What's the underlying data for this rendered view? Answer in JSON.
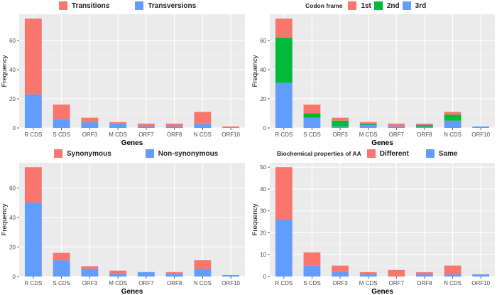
{
  "panels": [
    {
      "legend_title": "",
      "legend": [
        {
          "label": "Transitions",
          "color": "#F8766D"
        },
        {
          "label": "Transversions",
          "color": "#619CFF"
        }
      ]
    },
    {
      "legend_title": "Codon frame",
      "legend": [
        {
          "label": "1st",
          "color": "#F8766D"
        },
        {
          "label": "2nd",
          "color": "#00BA38"
        },
        {
          "label": "3rd",
          "color": "#619CFF"
        }
      ]
    },
    {
      "legend_title": "",
      "legend": [
        {
          "label": "Synonymous",
          "color": "#F8766D"
        },
        {
          "label": "Non-synonymous",
          "color": "#619CFF"
        }
      ]
    },
    {
      "legend_title": "Biochemical properties of AA",
      "legend": [
        {
          "label": "Different",
          "color": "#F8766D"
        },
        {
          "label": "Same",
          "color": "#619CFF"
        }
      ]
    }
  ],
  "chart_data": [
    {
      "type": "bar",
      "stacked": true,
      "title": "",
      "xlabel": "Genes",
      "ylabel": "Frequency",
      "categories": [
        "R CDS",
        "S CDS",
        "ORF3",
        "M CDS",
        "ORF7",
        "ORF8",
        "N CDS",
        "ORF10"
      ],
      "ylim": [
        0,
        78
      ],
      "yticks": [
        0,
        20,
        40,
        60
      ],
      "grid": true,
      "legend_position": "top",
      "series": [
        {
          "name": "Transversions",
          "color": "#619CFF",
          "values": [
            23,
            6,
            4,
            3,
            1,
            1,
            3,
            0
          ]
        },
        {
          "name": "Transitions",
          "color": "#F8766D",
          "values": [
            52,
            10,
            3,
            1,
            2,
            2,
            8,
            1
          ]
        }
      ]
    },
    {
      "type": "bar",
      "stacked": true,
      "title": "",
      "xlabel": "Genes",
      "ylabel": "Frequency",
      "legend_title": "Codon frame",
      "categories": [
        "R CDS",
        "S CDS",
        "ORF3",
        "M CDS",
        "ORF7",
        "ORF8",
        "N CDS",
        "ORF10"
      ],
      "ylim": [
        0,
        78
      ],
      "yticks": [
        0,
        20,
        40,
        60
      ],
      "grid": true,
      "legend_position": "top",
      "series": [
        {
          "name": "3rd",
          "color": "#619CFF",
          "values": [
            31,
            7,
            1,
            2,
            1,
            1,
            5,
            1
          ]
        },
        {
          "name": "2nd",
          "color": "#00BA38",
          "values": [
            31,
            3,
            4,
            1,
            0,
            1,
            4,
            0
          ]
        },
        {
          "name": "1st",
          "color": "#F8766D",
          "values": [
            13,
            6,
            2,
            1,
            2,
            1,
            2,
            0
          ]
        }
      ]
    },
    {
      "type": "bar",
      "stacked": true,
      "title": "",
      "xlabel": "Genes",
      "ylabel": "Frequency",
      "categories": [
        "R CDS",
        "S CDS",
        "ORF3",
        "M CDS",
        "ORF7",
        "ORF8",
        "N CDS",
        "ORF10"
      ],
      "ylim": [
        0,
        77
      ],
      "yticks": [
        0,
        20,
        40,
        60
      ],
      "grid": true,
      "legend_position": "top",
      "series": [
        {
          "name": "Non-synonymous",
          "color": "#619CFF",
          "values": [
            50,
            11,
            5,
            2,
            3,
            2,
            5,
            1
          ]
        },
        {
          "name": "Synonymous",
          "color": "#F8766D",
          "values": [
            24,
            5,
            2,
            2,
            0,
            1,
            6,
            0
          ]
        }
      ]
    },
    {
      "type": "bar",
      "stacked": true,
      "title": "",
      "xlabel": "Genes",
      "ylabel": "Frequency",
      "legend_title": "Biochemical properties of AA",
      "categories": [
        "R CDS",
        "S CDS",
        "ORF3",
        "M CDS",
        "ORF7",
        "ORF8",
        "N CDS",
        "ORF10"
      ],
      "ylim": [
        0,
        52
      ],
      "yticks": [
        0,
        10,
        20,
        30,
        40,
        50
      ],
      "grid": true,
      "legend_position": "top",
      "series": [
        {
          "name": "Same",
          "color": "#619CFF",
          "values": [
            26,
            5,
            2,
            1,
            0,
            1,
            1,
            1
          ]
        },
        {
          "name": "Different",
          "color": "#F8766D",
          "values": [
            24,
            6,
            3,
            1,
            3,
            1,
            4,
            0
          ]
        }
      ]
    }
  ]
}
